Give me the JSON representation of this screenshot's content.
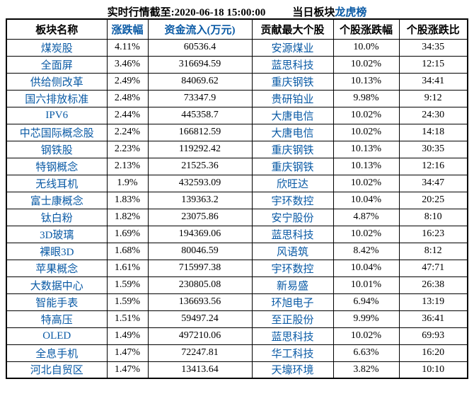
{
  "title": {
    "timestamp_label": "实时行情截至:2020-06-18 15:00:00",
    "board_label": "当日板块",
    "board_link": "龙虎榜"
  },
  "table": {
    "columns": [
      {
        "label": "板块名称",
        "accent": false
      },
      {
        "label": "涨跌幅",
        "accent": true
      },
      {
        "label": "资金流入(万元)",
        "accent": true
      },
      {
        "label": "贡献最大个股",
        "accent": false
      },
      {
        "label": "个股涨跌幅",
        "accent": false
      },
      {
        "label": "个股涨跌比",
        "accent": false
      }
    ],
    "rows": [
      {
        "sector": "煤炭股",
        "change": "4.11%",
        "inflow": "60536.4",
        "stock": "安源煤业",
        "stock_change": "10.0%",
        "ratio": "34:35"
      },
      {
        "sector": "全面屏",
        "change": "3.46%",
        "inflow": "316694.59",
        "stock": "蓝思科技",
        "stock_change": "10.02%",
        "ratio": "12:15"
      },
      {
        "sector": "供给侧改革",
        "change": "2.49%",
        "inflow": "84069.62",
        "stock": "重庆钢铁",
        "stock_change": "10.13%",
        "ratio": "34:41"
      },
      {
        "sector": "国六排放标准",
        "change": "2.48%",
        "inflow": "73347.9",
        "stock": "贵研铂业",
        "stock_change": "9.98%",
        "ratio": "9:12"
      },
      {
        "sector": "IPV6",
        "change": "2.44%",
        "inflow": "445358.7",
        "stock": "大唐电信",
        "stock_change": "10.02%",
        "ratio": "24:30"
      },
      {
        "sector": "中芯国际概念股",
        "change": "2.24%",
        "inflow": "166812.59",
        "stock": "大唐电信",
        "stock_change": "10.02%",
        "ratio": "14:18"
      },
      {
        "sector": "钢铁股",
        "change": "2.23%",
        "inflow": "119292.42",
        "stock": "重庆钢铁",
        "stock_change": "10.13%",
        "ratio": "30:35"
      },
      {
        "sector": "特钢概念",
        "change": "2.13%",
        "inflow": "21525.36",
        "stock": "重庆钢铁",
        "stock_change": "10.13%",
        "ratio": "12:16"
      },
      {
        "sector": "无线耳机",
        "change": "1.9%",
        "inflow": "432593.09",
        "stock": "欣旺达",
        "stock_change": "10.02%",
        "ratio": "34:47"
      },
      {
        "sector": "富士康概念",
        "change": "1.83%",
        "inflow": "139363.2",
        "stock": "宇环数控",
        "stock_change": "10.04%",
        "ratio": "20:25"
      },
      {
        "sector": "钛白粉",
        "change": "1.82%",
        "inflow": "23075.86",
        "stock": "安宁股份",
        "stock_change": "4.87%",
        "ratio": "8:10"
      },
      {
        "sector": "3D玻璃",
        "change": "1.69%",
        "inflow": "194369.06",
        "stock": "蓝思科技",
        "stock_change": "10.02%",
        "ratio": "16:23"
      },
      {
        "sector": "裸眼3D",
        "change": "1.68%",
        "inflow": "80046.59",
        "stock": "风语筑",
        "stock_change": "8.42%",
        "ratio": "8:12"
      },
      {
        "sector": "苹果概念",
        "change": "1.61%",
        "inflow": "715997.38",
        "stock": "宇环数控",
        "stock_change": "10.04%",
        "ratio": "47:71"
      },
      {
        "sector": "大数据中心",
        "change": "1.59%",
        "inflow": "230805.08",
        "stock": "新易盛",
        "stock_change": "10.01%",
        "ratio": "26:38"
      },
      {
        "sector": "智能手表",
        "change": "1.59%",
        "inflow": "136693.56",
        "stock": "环旭电子",
        "stock_change": "6.94%",
        "ratio": "13:19"
      },
      {
        "sector": "特高压",
        "change": "1.51%",
        "inflow": "59497.24",
        "stock": "至正股份",
        "stock_change": "9.99%",
        "ratio": "36:41"
      },
      {
        "sector": "OLED",
        "change": "1.49%",
        "inflow": "497210.06",
        "stock": "蓝思科技",
        "stock_change": "10.02%",
        "ratio": "69:93"
      },
      {
        "sector": "全息手机",
        "change": "1.47%",
        "inflow": "72247.81",
        "stock": "华工科技",
        "stock_change": "6.63%",
        "ratio": "16:20"
      },
      {
        "sector": "河北自贸区",
        "change": "1.47%",
        "inflow": "13413.64",
        "stock": "天壕环境",
        "stock_change": "3.82%",
        "ratio": "10:10"
      }
    ]
  },
  "colors": {
    "accent_blue": "#0A5AA5",
    "text": "#000000",
    "border": "#000000"
  }
}
